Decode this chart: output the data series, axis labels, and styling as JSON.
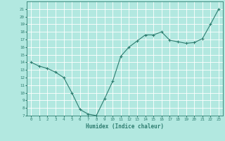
{
  "x": [
    0,
    1,
    2,
    3,
    4,
    5,
    6,
    7,
    8,
    9,
    10,
    11,
    12,
    13,
    14,
    15,
    16,
    17,
    18,
    19,
    20,
    21,
    22,
    23
  ],
  "y": [
    14,
    13.5,
    13.2,
    12.7,
    12.0,
    10.0,
    7.8,
    7.2,
    7.0,
    9.2,
    11.5,
    14.8,
    16.0,
    16.8,
    17.6,
    17.6,
    18.0,
    16.9,
    16.7,
    16.5,
    16.6,
    17.1,
    19.0,
    21.0
  ],
  "xlabel": "Humidex (Indice chaleur)",
  "ylim": [
    7,
    22
  ],
  "xlim": [
    -0.5,
    23.5
  ],
  "yticks": [
    7,
    8,
    9,
    10,
    11,
    12,
    13,
    14,
    15,
    16,
    17,
    18,
    19,
    20,
    21
  ],
  "xticks": [
    0,
    1,
    2,
    3,
    4,
    5,
    6,
    7,
    8,
    9,
    10,
    11,
    12,
    13,
    14,
    15,
    16,
    17,
    18,
    19,
    20,
    21,
    22,
    23
  ],
  "line_color": "#2e7d70",
  "bg_color": "#b2e8e0",
  "grid_color": "#ffffff",
  "marker": "+"
}
